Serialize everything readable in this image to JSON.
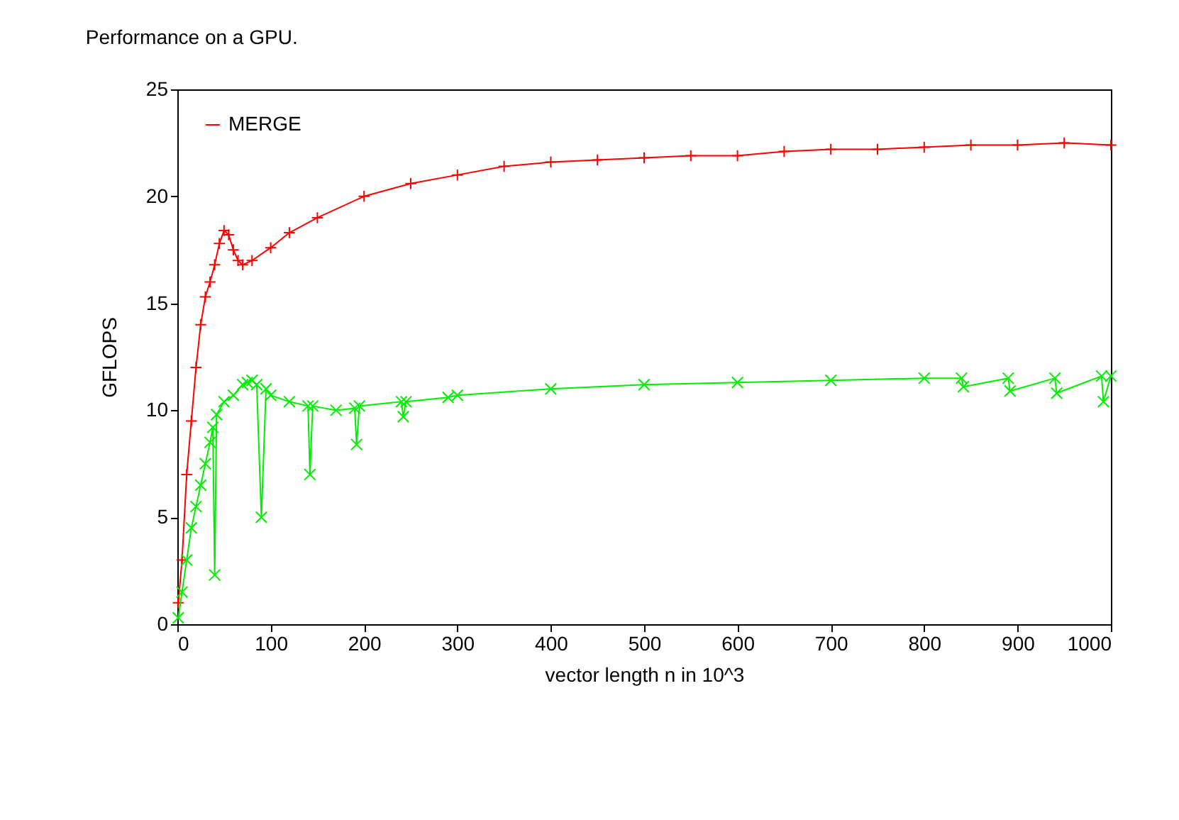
{
  "chart_data": {
    "type": "line",
    "title": "Performance on a GPU.",
    "xlabel": "vector length n in 10^3",
    "ylabel": "GFLOPS",
    "xlim": [
      0,
      1000
    ],
    "xticks": [
      0,
      100,
      200,
      300,
      400,
      500,
      600,
      700,
      800,
      900,
      1000
    ],
    "ylim": [
      0,
      25
    ],
    "yticks": [
      0,
      5,
      10,
      15,
      20,
      25
    ],
    "grid": false,
    "legend": "top left",
    "marker": "cross",
    "series": [
      {
        "name": "MERGE",
        "color": "#ff0000",
        "x": [
          1,
          5,
          10,
          15,
          20,
          25,
          30,
          35,
          40,
          45,
          50,
          55,
          60,
          65,
          70,
          80,
          100,
          120,
          150,
          200,
          250,
          300,
          350,
          400,
          450,
          500,
          550,
          600,
          650,
          700,
          750,
          800,
          850,
          900,
          950,
          1000
        ],
        "values": [
          1,
          3,
          7,
          9.5,
          12,
          14,
          15.3,
          16,
          16.8,
          17.8,
          18.4,
          18.2,
          17.5,
          17,
          16.8,
          17,
          17.6,
          18.3,
          19,
          20,
          20.6,
          21,
          21.4,
          21.6,
          21.7,
          21.8,
          21.9,
          21.9,
          22.1,
          22.2,
          22.2,
          22.3,
          22.4,
          22.4,
          22.5,
          22.4
        ]
      },
      {
        "color": "#00ee00",
        "x": [
          1,
          5,
          10,
          15,
          20,
          25,
          30,
          35,
          38,
          40,
          42,
          50,
          60,
          70,
          75,
          80,
          85,
          90,
          95,
          100,
          120,
          140,
          142,
          145,
          170,
          190,
          192,
          195,
          240,
          242,
          245,
          290,
          300,
          400,
          500,
          600,
          700,
          800,
          840,
          842,
          890,
          892,
          940,
          942,
          990,
          992,
          1000
        ],
        "values": [
          0.3,
          1.5,
          3,
          4.5,
          5.5,
          6.5,
          7.5,
          8.5,
          9.2,
          2.3,
          9.8,
          10.4,
          10.7,
          11.2,
          11.3,
          11.4,
          11.2,
          5,
          11,
          10.7,
          10.4,
          10.2,
          7,
          10.2,
          10,
          10.1,
          8.4,
          10.2,
          10.4,
          9.7,
          10.4,
          10.6,
          10.7,
          11,
          11.2,
          11.3,
          11.4,
          11.5,
          11.5,
          11.1,
          11.5,
          10.9,
          11.5,
          10.8,
          11.6,
          10.4,
          11.6
        ]
      }
    ]
  }
}
